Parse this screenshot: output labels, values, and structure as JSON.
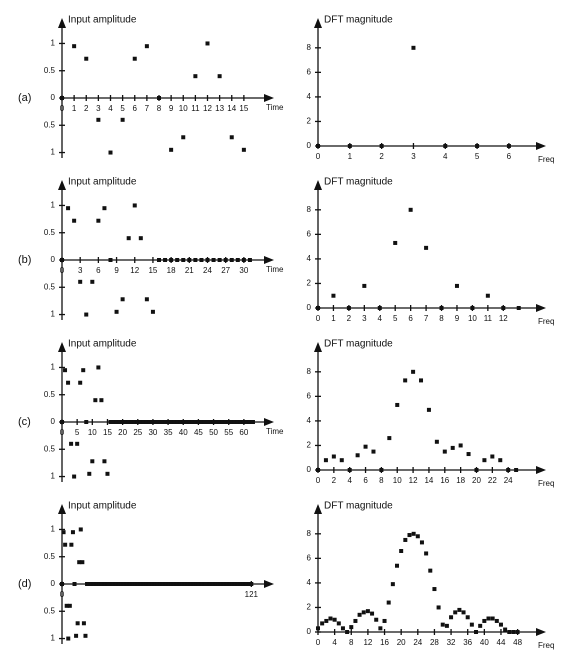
{
  "chart_data": [
    {
      "type": "scatter",
      "label": "(a)",
      "ylabel": "Input amplitude",
      "xlabel": "Time",
      "x": [
        0,
        1,
        2,
        3,
        4,
        5,
        6,
        7,
        8,
        9,
        10,
        11,
        12,
        13,
        14,
        15
      ],
      "values": [
        0,
        0.95,
        0.72,
        -0.4,
        -1,
        -0.4,
        0.72,
        0.95,
        0,
        -0.95,
        -0.72,
        0.4,
        1,
        0.4,
        -0.72,
        -0.95
      ],
      "xlim": [
        0,
        16
      ],
      "xticks": [
        0,
        1,
        2,
        3,
        4,
        5,
        6,
        7,
        8,
        9,
        10,
        11,
        12,
        13,
        14,
        15
      ],
      "ylim": [
        -1.1,
        1.1
      ],
      "yticks": [
        {
          "value": -1,
          "label": "1"
        },
        {
          "value": -0.5,
          "label": "0.5"
        },
        0,
        0.5,
        1
      ],
      "color": "#111111"
    },
    {
      "type": "scatter",
      "ylabel": "DFT magnitude",
      "xlabel": "Freq",
      "x": [
        0,
        1,
        2,
        3,
        4,
        5,
        6
      ],
      "values": [
        0,
        0,
        0,
        8,
        0,
        0,
        0
      ],
      "xlim": [
        0,
        6.6
      ],
      "xticks": [
        0,
        1,
        2,
        3,
        4,
        5,
        6
      ],
      "ylim": [
        0,
        8.8
      ],
      "yticks": [
        0,
        2,
        4,
        6,
        8
      ],
      "color": "#111111"
    },
    {
      "type": "scatter",
      "label": "(b)",
      "ylabel": "Input amplitude",
      "xlabel": "Time",
      "x": [
        0,
        1,
        2,
        3,
        4,
        5,
        6,
        7,
        8,
        9,
        10,
        11,
        12,
        13,
        14,
        15,
        16,
        17,
        18,
        19,
        20,
        21,
        22,
        23,
        24,
        25,
        26,
        27,
        28,
        29,
        30,
        31
      ],
      "values": [
        0,
        0.95,
        0.72,
        -0.4,
        -1,
        -0.4,
        0.72,
        0.95,
        0,
        -0.95,
        -0.72,
        0.4,
        1,
        0.4,
        -0.72,
        -0.95,
        0,
        0,
        0,
        0,
        0,
        0,
        0,
        0,
        0,
        0,
        0,
        0,
        0,
        0,
        0,
        0
      ],
      "xlim": [
        0,
        32
      ],
      "xticks": [
        0,
        3,
        6,
        9,
        12,
        15,
        18,
        21,
        24,
        27,
        30
      ],
      "ylim": [
        -1.1,
        1.1
      ],
      "yticks": [
        {
          "value": -1,
          "label": "1"
        },
        {
          "value": -0.5,
          "label": "0.5"
        },
        0,
        0.5,
        1
      ],
      "color": "#111111"
    },
    {
      "type": "scatter",
      "ylabel": "DFT magnitude",
      "xlabel": "Freq",
      "x": [
        0,
        1,
        2,
        3,
        4,
        5,
        6,
        7,
        8,
        9,
        10,
        11,
        12,
        13
      ],
      "values": [
        0,
        1,
        0,
        1.8,
        0,
        5.3,
        8,
        4.9,
        0,
        1.8,
        0,
        1,
        0,
        0
      ],
      "xlim": [
        0,
        13.6
      ],
      "xticks": [
        0,
        1,
        2,
        3,
        4,
        5,
        6,
        7,
        8,
        9,
        10,
        11,
        12
      ],
      "ylim": [
        0,
        8.8
      ],
      "yticks": [
        0,
        2,
        4,
        6,
        8
      ],
      "color": "#111111"
    },
    {
      "type": "scatter",
      "label": "(c)",
      "ylabel": "Input amplitude",
      "xlabel": "Time",
      "x": [
        0,
        1,
        2,
        3,
        4,
        5,
        6,
        7,
        8,
        9,
        10,
        11,
        12,
        13,
        14,
        15,
        16,
        17,
        18,
        19,
        20,
        21,
        22,
        23,
        24,
        25,
        26,
        27,
        28,
        29,
        30,
        31,
        32,
        33,
        34,
        35,
        36,
        37,
        38,
        39,
        40,
        41,
        42,
        43,
        44,
        45,
        46,
        47,
        48,
        49,
        50,
        51,
        52,
        53,
        54,
        55,
        56,
        57,
        58,
        59,
        60,
        61,
        62,
        63
      ],
      "values": [
        0,
        0.95,
        0.72,
        -0.4,
        -1,
        -0.4,
        0.72,
        0.95,
        0,
        -0.95,
        -0.72,
        0.4,
        1,
        0.4,
        -0.72,
        -0.95,
        0,
        0,
        0,
        0,
        0,
        0,
        0,
        0,
        0,
        0,
        0,
        0,
        0,
        0,
        0,
        0,
        0,
        0,
        0,
        0,
        0,
        0,
        0,
        0,
        0,
        0,
        0,
        0,
        0,
        0,
        0,
        0,
        0,
        0,
        0,
        0,
        0,
        0,
        0,
        0,
        0,
        0,
        0,
        0,
        0,
        0,
        0,
        0
      ],
      "xlim": [
        0,
        64
      ],
      "xticks": [
        0,
        5,
        10,
        15,
        20,
        25,
        30,
        35,
        40,
        45,
        50,
        55,
        60
      ],
      "ylim": [
        -1.1,
        1.1
      ],
      "yticks": [
        {
          "value": -1,
          "label": "1"
        },
        {
          "value": -0.5,
          "label": "0.5"
        },
        0,
        0.5,
        1
      ],
      "color": "#111111"
    },
    {
      "type": "scatter",
      "ylabel": "DFT magnitude",
      "xlabel": "Freq",
      "x": [
        0,
        1,
        2,
        3,
        4,
        5,
        6,
        7,
        8,
        9,
        10,
        11,
        12,
        13,
        14,
        15,
        16,
        17,
        18,
        19,
        20,
        21,
        22,
        23,
        24,
        25
      ],
      "values": [
        0,
        0.8,
        1.1,
        0.8,
        0,
        1.2,
        1.9,
        1.5,
        0,
        2.6,
        5.3,
        7.3,
        8,
        7.3,
        4.9,
        2.3,
        1.5,
        1.8,
        2,
        1.3,
        0,
        0.8,
        1.1,
        0.8,
        0,
        0
      ],
      "xlim": [
        0,
        26.5
      ],
      "xticks": [
        0,
        2,
        4,
        6,
        8,
        10,
        12,
        14,
        16,
        18,
        20,
        22,
        24
      ],
      "ylim": [
        0,
        8.8
      ],
      "yticks": [
        0,
        2,
        4,
        6,
        8
      ],
      "color": "#111111"
    },
    {
      "type": "scatter",
      "label": "(d)",
      "ylabel": "Input amplitude",
      "x": [
        0,
        1,
        2,
        3,
        4,
        5,
        6,
        7,
        8,
        9,
        10,
        11,
        12,
        13,
        14,
        15,
        16,
        17,
        18,
        19,
        20,
        21,
        22,
        23,
        24,
        25,
        26,
        27,
        28,
        29,
        30,
        31,
        32,
        33,
        34,
        35,
        36,
        37,
        38,
        39,
        40,
        41,
        42,
        43,
        44,
        45,
        46,
        47,
        48,
        49,
        50,
        51,
        52,
        53,
        54,
        55,
        56,
        57,
        58,
        59,
        60,
        61,
        62,
        63,
        64,
        65,
        66,
        67,
        68,
        69,
        70,
        71,
        72,
        73,
        74,
        75,
        76,
        77,
        78,
        79,
        80,
        81,
        82,
        83,
        84,
        85,
        86,
        87,
        88,
        89,
        90,
        91,
        92,
        93,
        94,
        95,
        96,
        97,
        98,
        99,
        100,
        101,
        102,
        103,
        104,
        105,
        106,
        107,
        108,
        109,
        110,
        111,
        112,
        113,
        114,
        115,
        116,
        117,
        118,
        119,
        120,
        121
      ],
      "values": [
        0,
        0.95,
        0.72,
        -0.4,
        -1,
        -0.4,
        0.72,
        0.95,
        0,
        -0.95,
        -0.72,
        0.4,
        1,
        0.4,
        -0.72,
        -0.95,
        0,
        0,
        0,
        0,
        0,
        0,
        0,
        0,
        0,
        0,
        0,
        0,
        0,
        0,
        0,
        0,
        0,
        0,
        0,
        0,
        0,
        0,
        0,
        0,
        0,
        0,
        0,
        0,
        0,
        0,
        0,
        0,
        0,
        0,
        0,
        0,
        0,
        0,
        0,
        0,
        0,
        0,
        0,
        0,
        0,
        0,
        0,
        0,
        0,
        0,
        0,
        0,
        0,
        0,
        0,
        0,
        0,
        0,
        0,
        0,
        0,
        0,
        0,
        0,
        0,
        0,
        0,
        0,
        0,
        0,
        0,
        0,
        0,
        0,
        0,
        0,
        0,
        0,
        0,
        0,
        0,
        0,
        0,
        0,
        0,
        0,
        0,
        0,
        0,
        0,
        0,
        0,
        0,
        0,
        0,
        0,
        0,
        0,
        0,
        0,
        0,
        0,
        0,
        0,
        0,
        0
      ],
      "xlim": [
        0,
        124
      ],
      "xticks": [
        0,
        121
      ],
      "ylim": [
        -1.1,
        1.1
      ],
      "yticks": [
        {
          "value": -1,
          "label": "1"
        },
        {
          "value": -0.5,
          "label": "0.5"
        },
        0,
        0.5,
        1
      ],
      "color": "#111111"
    },
    {
      "type": "scatter",
      "ylabel": "DFT magnitude",
      "xlabel": "Freq",
      "x": [
        0,
        1,
        2,
        3,
        4,
        5,
        6,
        7,
        8,
        9,
        10,
        11,
        12,
        13,
        14,
        15,
        16,
        17,
        18,
        19,
        20,
        21,
        22,
        23,
        24,
        25,
        26,
        27,
        28,
        29,
        30,
        31,
        32,
        33,
        34,
        35,
        36,
        37,
        38,
        39,
        40,
        41,
        42,
        43,
        44,
        45,
        46,
        47,
        48
      ],
      "values": [
        0.3,
        0.7,
        0.9,
        1.1,
        1,
        0.7,
        0.3,
        0,
        0.4,
        0.9,
        1.4,
        1.6,
        1.7,
        1.5,
        1,
        0.3,
        0.9,
        2.4,
        3.9,
        5.4,
        6.6,
        7.5,
        7.9,
        8,
        7.8,
        7.3,
        6.4,
        5,
        3.5,
        2,
        0.6,
        0.5,
        1.2,
        1.6,
        1.8,
        1.6,
        1.2,
        0.6,
        0,
        0.5,
        0.9,
        1.1,
        1.1,
        0.9,
        0.6,
        0.2,
        0,
        0,
        0
      ],
      "xlim": [
        0,
        50.5
      ],
      "xticks": [
        0,
        4,
        8,
        12,
        16,
        20,
        24,
        28,
        32,
        36,
        40,
        44,
        48
      ],
      "ylim": [
        0,
        8.8
      ],
      "yticks": [
        0,
        2,
        4,
        6,
        8
      ],
      "color": "#111111"
    }
  ]
}
